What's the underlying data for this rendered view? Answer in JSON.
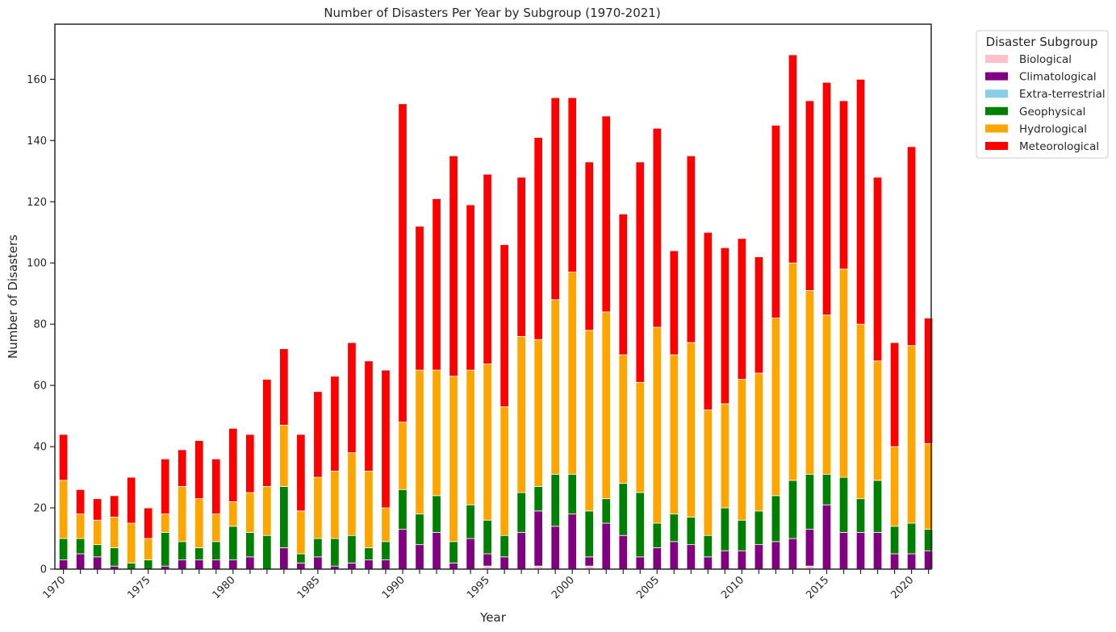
{
  "chart_data": {
    "type": "bar",
    "stacked": true,
    "title": "Number of Disasters Per Year by Subgroup (1970-2021)",
    "xlabel": "Year",
    "ylabel": "Number of Disasters",
    "ylim": [
      0,
      178
    ],
    "yticks": [
      0,
      20,
      40,
      60,
      80,
      100,
      120,
      140,
      160
    ],
    "xtick_labels": [
      "1970",
      "1975",
      "1980",
      "1985",
      "1990",
      "1995",
      "2000",
      "2005",
      "2010",
      "2015",
      "2020"
    ],
    "grid": false,
    "legend": {
      "title": "Disaster Subgroup",
      "placement": "outside-top-right"
    },
    "categories": [
      1970,
      1971,
      1972,
      1973,
      1974,
      1975,
      1976,
      1977,
      1978,
      1979,
      1980,
      1981,
      1982,
      1983,
      1984,
      1985,
      1986,
      1987,
      1988,
      1989,
      1990,
      1991,
      1992,
      1993,
      1994,
      1995,
      1996,
      1997,
      1998,
      1999,
      2000,
      2001,
      2002,
      2003,
      2004,
      2005,
      2006,
      2007,
      2008,
      2009,
      2010,
      2011,
      2012,
      2013,
      2014,
      2015,
      2016,
      2017,
      2018,
      2019,
      2020,
      2021
    ],
    "series": [
      {
        "name": "Biological",
        "color": "#ffc0cb",
        "values": [
          0,
          0,
          0,
          0,
          0,
          0,
          0,
          0,
          0,
          0,
          0,
          0,
          0,
          0,
          0,
          0,
          0,
          0,
          0,
          0,
          0,
          0,
          0,
          0,
          0,
          1,
          0,
          0,
          1,
          0,
          0,
          1,
          0,
          0,
          0,
          0,
          0,
          0,
          0,
          0,
          0,
          0,
          0,
          0,
          1,
          0,
          0,
          0,
          0,
          0,
          0,
          0
        ]
      },
      {
        "name": "Climatological",
        "color": "#800080",
        "values": [
          3,
          5,
          4,
          1,
          0,
          0,
          1,
          3,
          3,
          3,
          3,
          4,
          0,
          7,
          2,
          4,
          1,
          2,
          3,
          3,
          13,
          8,
          12,
          2,
          10,
          4,
          4,
          12,
          18,
          14,
          18,
          3,
          15,
          11,
          4,
          7,
          9,
          8,
          4,
          6,
          6,
          8,
          9,
          10,
          12,
          21,
          12,
          12,
          12,
          5,
          5,
          6
        ]
      },
      {
        "name": "Extra-terrestrial",
        "color": "#87ceeb",
        "values": [
          0,
          0,
          0,
          0,
          0,
          0,
          0,
          0,
          0,
          0,
          0,
          0,
          0,
          0,
          0,
          0,
          0,
          0,
          0,
          0,
          0,
          0,
          0,
          0,
          0,
          0,
          0,
          0,
          0,
          0,
          0,
          0,
          0,
          0,
          0,
          0,
          0,
          0,
          0,
          0,
          0,
          0,
          0,
          0,
          0,
          0,
          0,
          0,
          0,
          0,
          0,
          0
        ]
      },
      {
        "name": "Geophysical",
        "color": "#008000",
        "values": [
          7,
          5,
          4,
          6,
          2,
          3,
          11,
          6,
          4,
          6,
          11,
          8,
          11,
          20,
          3,
          6,
          9,
          9,
          4,
          6,
          13,
          10,
          12,
          7,
          11,
          11,
          7,
          13,
          8,
          17,
          13,
          15,
          8,
          17,
          21,
          8,
          9,
          9,
          7,
          14,
          10,
          11,
          15,
          19,
          18,
          10,
          18,
          11,
          17,
          9,
          10,
          7
        ]
      },
      {
        "name": "Hydrological",
        "color": "#ffa500",
        "values": [
          19,
          8,
          8,
          10,
          13,
          7,
          6,
          18,
          16,
          9,
          8,
          13,
          16,
          20,
          14,
          20,
          22,
          27,
          25,
          11,
          22,
          47,
          41,
          54,
          44,
          51,
          42,
          51,
          48,
          57,
          66,
          59,
          61,
          42,
          36,
          64,
          52,
          57,
          41,
          34,
          46,
          45,
          58,
          71,
          60,
          52,
          68,
          57,
          39,
          26,
          58,
          28
        ]
      },
      {
        "name": "Meteorological",
        "color": "#ff0000",
        "values": [
          15,
          8,
          7,
          7,
          15,
          10,
          18,
          12,
          19,
          18,
          24,
          19,
          35,
          25,
          25,
          28,
          31,
          36,
          36,
          45,
          104,
          47,
          56,
          72,
          54,
          62,
          53,
          52,
          66,
          66,
          57,
          55,
          64,
          46,
          72,
          65,
          34,
          61,
          58,
          51,
          46,
          38,
          63,
          68,
          62,
          76,
          55,
          80,
          60,
          34,
          65,
          41
        ]
      }
    ]
  }
}
